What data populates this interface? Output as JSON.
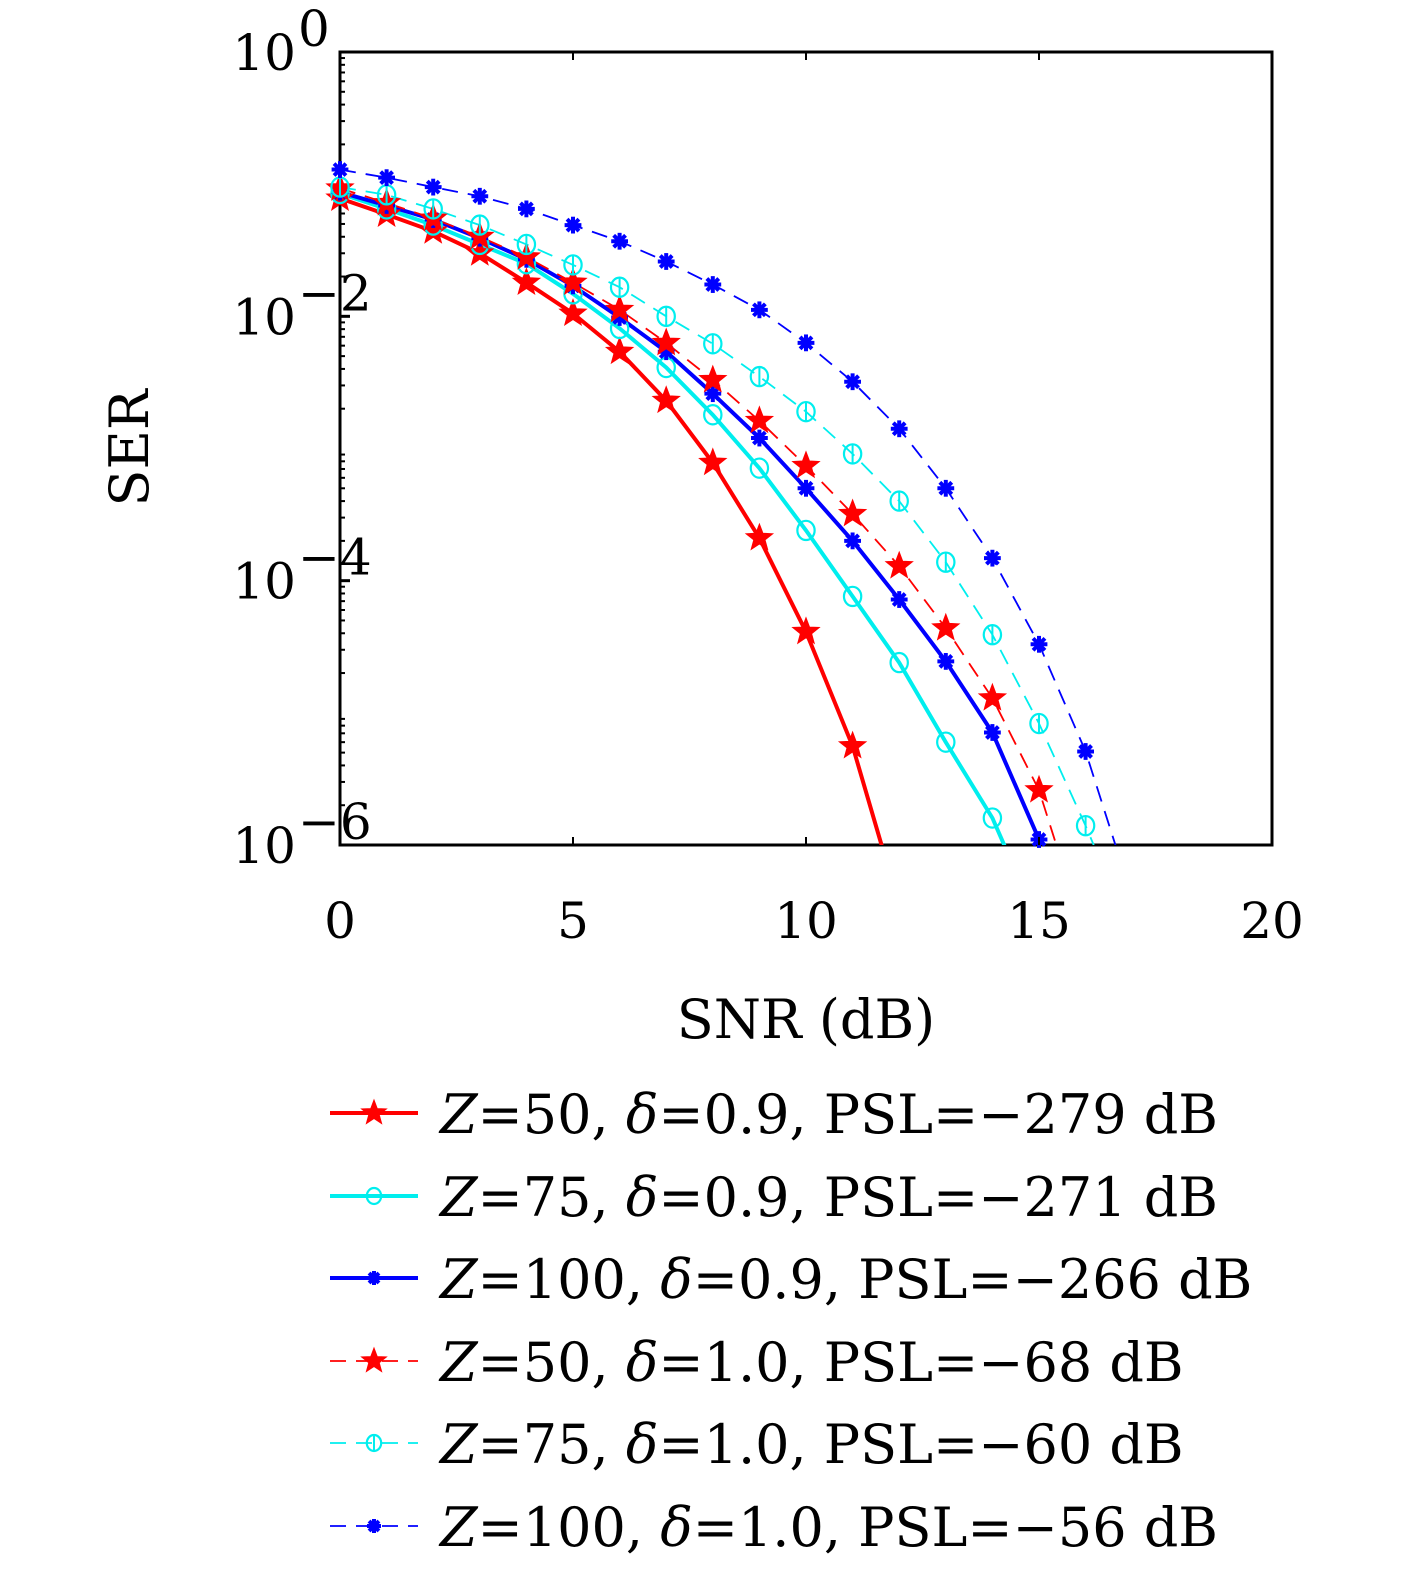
{
  "chart_data": {
    "type": "line",
    "title": "",
    "xlabel": "SNR (dB)",
    "ylabel": "SER",
    "xscale": "linear",
    "yscale": "log",
    "xlim": [
      0,
      20
    ],
    "ylim": [
      1e-06,
      1
    ],
    "xticks": [
      0,
      5,
      10,
      15,
      20
    ],
    "xtick_labels": [
      "0",
      "5",
      "10",
      "15",
      "20"
    ],
    "yticks": [
      1,
      0.01,
      0.0001,
      1e-06
    ],
    "ytick_labels": [
      {
        "base": "10",
        "exp": "0"
      },
      {
        "base": "10",
        "exp": "−2"
      },
      {
        "base": "10",
        "exp": "−4"
      },
      {
        "base": "10",
        "exp": "−6"
      }
    ],
    "grid": false,
    "legend_position": "below",
    "series": [
      {
        "name": "Z=50, δ=0.9, PSL=−279 dB",
        "label_parts": {
          "z": "Z",
          "zval": "=50, ",
          "delta": "δ",
          "rest": "=0.9, PSL=−279 dB"
        },
        "color": "#ff0000",
        "linestyle": "solid",
        "marker": "star",
        "x": [
          0,
          1,
          2,
          3,
          4,
          5,
          6,
          7,
          8,
          9,
          10,
          11,
          12
        ],
        "y": [
          0.078,
          0.059,
          0.044,
          0.03,
          0.018,
          0.0105,
          0.0054,
          0.0023,
          0.00078,
          0.00021,
          4.1e-05,
          5.6e-06,
          3.5e-07
        ]
      },
      {
        "name": "Z=75, δ=0.9, PSL=−271 dB",
        "label_parts": {
          "z": "Z",
          "zval": "=75, ",
          "delta": "δ",
          "rest": "=0.9, PSL=−271 dB"
        },
        "color": "#00eeee",
        "linestyle": "solid",
        "marker": "circle",
        "x": [
          0,
          1,
          2,
          3,
          4,
          5,
          6,
          7,
          8,
          9,
          10,
          11,
          12,
          13,
          14,
          15
        ],
        "y": [
          0.085,
          0.065,
          0.049,
          0.035,
          0.025,
          0.0148,
          0.0081,
          0.0041,
          0.0018,
          0.00071,
          0.00024,
          7.6e-05,
          2.4e-05,
          6e-06,
          1.6e-06,
          2.5e-07
        ]
      },
      {
        "name": "Z=100, δ=0.9, PSL=−266 dB",
        "label_parts": {
          "z": "Z",
          "zval": "=100, ",
          "delta": "δ",
          "rest": "=0.9, PSL=−266 dB"
        },
        "color": "#0000ff",
        "linestyle": "solid",
        "marker": "asterisk",
        "x": [
          0,
          1,
          2,
          3,
          4,
          5,
          6,
          7,
          8,
          9,
          10,
          11,
          12,
          13,
          14,
          15,
          16
        ],
        "y": [
          0.087,
          0.069,
          0.054,
          0.039,
          0.027,
          0.017,
          0.0098,
          0.0054,
          0.0026,
          0.0012,
          0.0005,
          0.0002,
          7.2e-05,
          2.45e-05,
          7.1e-06,
          1.1e-06,
          1e-07
        ]
      },
      {
        "name": "Z=50, δ=1.0, PSL=−68 dB",
        "label_parts": {
          "z": "Z",
          "zval": "=50, ",
          "delta": "δ",
          "rest": "=1.0, PSL=−68 dB"
        },
        "color": "#ff0000",
        "linestyle": "dashed",
        "marker": "star",
        "x": [
          0,
          1,
          2,
          3,
          4,
          5,
          6,
          7,
          8,
          9,
          10,
          11,
          12,
          13,
          14,
          15,
          16
        ],
        "y": [
          0.093,
          0.072,
          0.055,
          0.04,
          0.028,
          0.018,
          0.0112,
          0.0063,
          0.0033,
          0.00162,
          0.00074,
          0.00032,
          0.000129,
          4.37e-05,
          1.29e-05,
          2.6e-06,
          2e-07
        ]
      },
      {
        "name": "Z=75, δ=1.0, PSL=−60 dB",
        "label_parts": {
          "z": "Z",
          "zval": "=75, ",
          "delta": "δ",
          "rest": "=1.0, PSL=−60 dB"
        },
        "color": "#00eeee",
        "linestyle": "dashed",
        "marker": "circle-bar",
        "x": [
          0,
          1,
          2,
          3,
          4,
          5,
          6,
          7,
          8,
          9,
          10,
          11,
          12,
          13,
          14,
          15,
          16,
          17
        ],
        "y": [
          0.095,
          0.083,
          0.065,
          0.049,
          0.035,
          0.0245,
          0.0166,
          0.01,
          0.0062,
          0.0035,
          0.0019,
          0.00091,
          0.0004,
          0.000138,
          3.9e-05,
          8.3e-06,
          1.4e-06,
          2e-07
        ]
      },
      {
        "name": "Z=100, δ=1.0, PSL=−56 dB",
        "label_parts": {
          "z": "Z",
          "zval": "=100, ",
          "delta": "δ",
          "rest": "=1.0, PSL=−56 dB"
        },
        "color": "#0000ff",
        "linestyle": "dashed",
        "marker": "asterisk",
        "x": [
          0,
          1,
          2,
          3,
          4,
          5,
          6,
          7,
          8,
          9,
          10,
          11,
          12,
          13,
          14,
          15,
          16,
          17
        ],
        "y": [
          0.129,
          0.112,
          0.095,
          0.081,
          0.065,
          0.049,
          0.037,
          0.026,
          0.0174,
          0.0112,
          0.0063,
          0.0032,
          0.00141,
          0.0005,
          0.000148,
          3.3e-05,
          5.1e-06,
          4e-07
        ]
      }
    ]
  }
}
